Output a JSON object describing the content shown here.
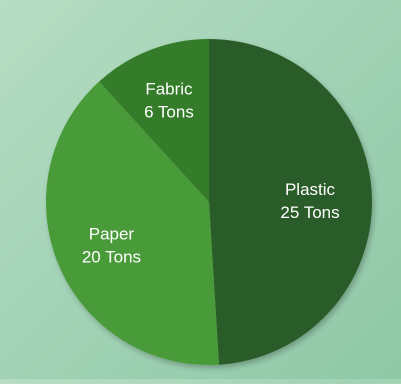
{
  "chart_data": {
    "type": "pie",
    "title": "",
    "slices": [
      {
        "label": "Plastic",
        "value": 25,
        "value_text": "25 Tons",
        "color": "#2c5b2a"
      },
      {
        "label": "Paper",
        "value": 20,
        "value_text": "20 Tons",
        "color": "#4a9a37"
      },
      {
        "label": "Fabric",
        "value": 6,
        "value_text": "6 Tons",
        "color": "#367c2c"
      }
    ],
    "legend": "none",
    "start": "top",
    "direction": "clockwise"
  }
}
